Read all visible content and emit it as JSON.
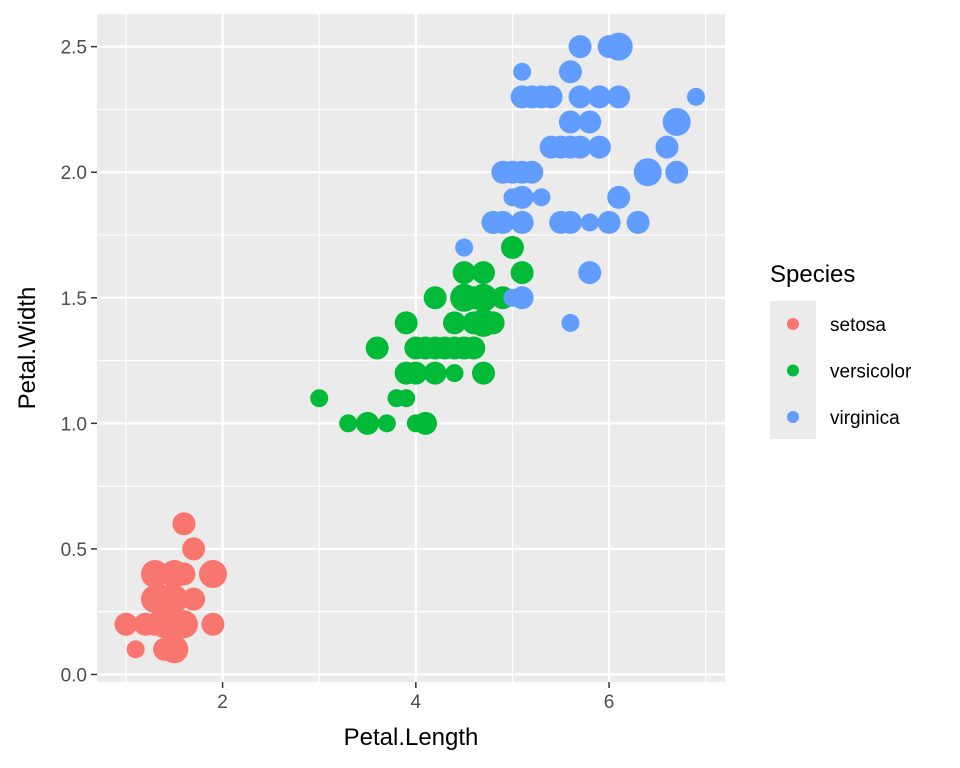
{
  "chart_data": {
    "type": "scatter",
    "xlabel": "Petal.Length",
    "ylabel": "Petal.Width",
    "xlim": [
      0.7,
      7.2
    ],
    "ylim": [
      -0.03,
      2.63
    ],
    "x_ticks": [
      2,
      4,
      6
    ],
    "y_ticks": [
      0.0,
      0.5,
      1.0,
      1.5,
      2.0,
      2.5
    ],
    "y_tick_labels": [
      "0.0",
      "0.5",
      "1.0",
      "1.5",
      "2.0",
      "2.5"
    ],
    "panel_background": "#ebebeb",
    "grid": true,
    "legend": {
      "title": "Species",
      "position": "right",
      "entries": [
        "setosa",
        "versicolor",
        "virginica"
      ]
    },
    "series": [
      {
        "name": "setosa",
        "color": "#f8766d",
        "points": [
          [
            1.0,
            0.2,
            2
          ],
          [
            1.1,
            0.1,
            1
          ],
          [
            1.2,
            0.2,
            2
          ],
          [
            1.3,
            0.2,
            2
          ],
          [
            1.3,
            0.3,
            3
          ],
          [
            1.3,
            0.4,
            3
          ],
          [
            1.4,
            0.2,
            3
          ],
          [
            1.4,
            0.3,
            3
          ],
          [
            1.4,
            0.1,
            2
          ],
          [
            1.5,
            0.1,
            3
          ],
          [
            1.5,
            0.2,
            3
          ],
          [
            1.5,
            0.3,
            3
          ],
          [
            1.5,
            0.4,
            3
          ],
          [
            1.6,
            0.2,
            3
          ],
          [
            1.6,
            0.6,
            2
          ],
          [
            1.6,
            0.4,
            2
          ],
          [
            1.7,
            0.5,
            2
          ],
          [
            1.7,
            0.3,
            2
          ],
          [
            1.9,
            0.2,
            2
          ],
          [
            1.9,
            0.4,
            3
          ]
        ]
      },
      {
        "name": "versicolor",
        "color": "#00ba38",
        "points": [
          [
            3.0,
            1.1,
            1
          ],
          [
            3.3,
            1.0,
            1
          ],
          [
            3.5,
            1.0,
            2
          ],
          [
            3.6,
            1.3,
            2
          ],
          [
            3.7,
            1.0,
            1
          ],
          [
            3.8,
            1.1,
            1
          ],
          [
            3.9,
            1.2,
            2
          ],
          [
            3.9,
            1.1,
            1
          ],
          [
            3.9,
            1.4,
            2
          ],
          [
            4.0,
            1.0,
            1
          ],
          [
            4.0,
            1.3,
            2
          ],
          [
            4.0,
            1.2,
            2
          ],
          [
            4.1,
            1.3,
            2
          ],
          [
            4.1,
            1.0,
            2
          ],
          [
            4.2,
            1.3,
            2
          ],
          [
            4.2,
            1.2,
            2
          ],
          [
            4.2,
            1.5,
            2
          ],
          [
            4.3,
            1.3,
            2
          ],
          [
            4.4,
            1.4,
            2
          ],
          [
            4.4,
            1.3,
            2
          ],
          [
            4.4,
            1.2,
            1
          ],
          [
            4.5,
            1.5,
            3
          ],
          [
            4.5,
            1.3,
            2
          ],
          [
            4.5,
            1.6,
            2
          ],
          [
            4.6,
            1.4,
            2
          ],
          [
            4.6,
            1.5,
            2
          ],
          [
            4.6,
            1.3,
            2
          ],
          [
            4.7,
            1.4,
            3
          ],
          [
            4.7,
            1.5,
            3
          ],
          [
            4.7,
            1.6,
            2
          ],
          [
            4.7,
            1.2,
            2
          ],
          [
            4.8,
            1.4,
            2
          ],
          [
            4.8,
            1.8,
            2
          ],
          [
            4.9,
            1.5,
            2
          ],
          [
            5.0,
            1.7,
            2
          ],
          [
            5.1,
            1.6,
            2
          ]
        ]
      },
      {
        "name": "virginica",
        "color": "#619cff",
        "points": [
          [
            4.5,
            1.7,
            1
          ],
          [
            4.8,
            1.8,
            2
          ],
          [
            4.9,
            2.0,
            2
          ],
          [
            4.9,
            1.8,
            2
          ],
          [
            5.0,
            2.0,
            2
          ],
          [
            5.0,
            1.5,
            1
          ],
          [
            5.0,
            1.9,
            1
          ],
          [
            5.1,
            2.3,
            2
          ],
          [
            5.1,
            2.0,
            2
          ],
          [
            5.1,
            1.9,
            2
          ],
          [
            5.1,
            1.8,
            2
          ],
          [
            5.1,
            1.5,
            2
          ],
          [
            5.1,
            2.4,
            1
          ],
          [
            5.2,
            2.3,
            2
          ],
          [
            5.2,
            2.0,
            2
          ],
          [
            5.3,
            2.3,
            2
          ],
          [
            5.3,
            1.9,
            1
          ],
          [
            5.4,
            2.3,
            2
          ],
          [
            5.4,
            2.1,
            2
          ],
          [
            5.5,
            2.1,
            2
          ],
          [
            5.5,
            1.8,
            2
          ],
          [
            5.6,
            2.4,
            2
          ],
          [
            5.6,
            2.2,
            2
          ],
          [
            5.6,
            2.1,
            2
          ],
          [
            5.6,
            1.8,
            2
          ],
          [
            5.6,
            1.4,
            1
          ],
          [
            5.7,
            2.5,
            2
          ],
          [
            5.7,
            2.3,
            2
          ],
          [
            5.7,
            2.1,
            2
          ],
          [
            5.8,
            2.2,
            2
          ],
          [
            5.8,
            1.8,
            1
          ],
          [
            5.8,
            1.6,
            2
          ],
          [
            5.9,
            2.3,
            2
          ],
          [
            5.9,
            2.1,
            2
          ],
          [
            6.0,
            2.5,
            2
          ],
          [
            6.0,
            1.8,
            2
          ],
          [
            6.1,
            2.5,
            3
          ],
          [
            6.1,
            2.3,
            2
          ],
          [
            6.1,
            1.9,
            2
          ],
          [
            6.3,
            1.8,
            2
          ],
          [
            6.4,
            2.0,
            3
          ],
          [
            6.6,
            2.1,
            2
          ],
          [
            6.7,
            2.2,
            3
          ],
          [
            6.7,
            2.0,
            2
          ],
          [
            6.9,
            2.3,
            1
          ]
        ]
      }
    ]
  }
}
